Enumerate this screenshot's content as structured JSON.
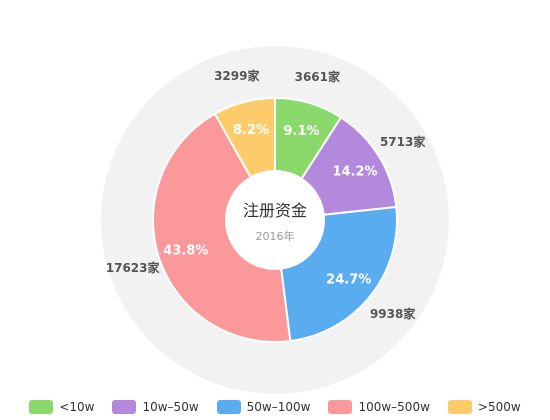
{
  "chart_data": {
    "type": "pie",
    "title": "注册资金",
    "subtitle": "2016年",
    "series": [
      {
        "name": "<10w",
        "percent": 9.1,
        "percent_label": "9.1%",
        "count_label": "3661家",
        "color": "#8bd86b"
      },
      {
        "name": "10w–50w",
        "percent": 14.2,
        "percent_label": "14.2%",
        "count_label": "5713家",
        "color": "#b389dd"
      },
      {
        "name": "50w–100w",
        "percent": 24.7,
        "percent_label": "24.7%",
        "count_label": "9938家",
        "color": "#5aacf1"
      },
      {
        "name": "100w–500w",
        "percent": 43.8,
        "percent_label": "43.8%",
        "count_label": "17623家",
        "color": "#fb989a"
      },
      {
        "name": ">500w",
        "percent": 8.2,
        "percent_label": "8.2%",
        "count_label": "3299家",
        "color": "#fccc6b"
      }
    ],
    "legend_position": "bottom"
  },
  "colors": {
    "outer_ring": "#f2f2f2",
    "percent_text": "#ffffff",
    "count_text": "#555555",
    "title_text": "#333333",
    "subtitle_text": "#999999"
  }
}
